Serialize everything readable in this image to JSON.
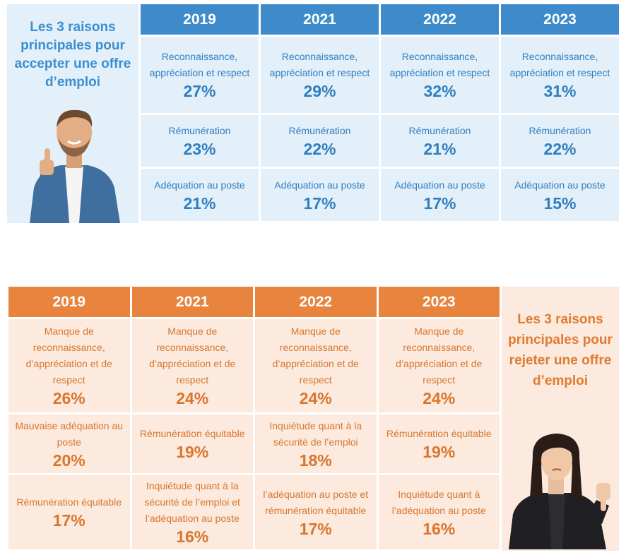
{
  "accept": {
    "title": "Les 3 raisons principales pour accepter une offre d’emploi",
    "years": [
      {
        "year": "2019",
        "items": [
          {
            "label": "Reconnaissance, appréciation et respect",
            "value": "27%"
          },
          {
            "label": "Rémunération",
            "value": "23%"
          },
          {
            "label": "Adéquation au poste",
            "value": "21%"
          }
        ]
      },
      {
        "year": "2021",
        "items": [
          {
            "label": "Reconnaissance, appréciation et respect",
            "value": "29%"
          },
          {
            "label": "Rémunération",
            "value": "22%"
          },
          {
            "label": "Adéquation au poste",
            "value": "17%"
          }
        ]
      },
      {
        "year": "2022",
        "items": [
          {
            "label": "Reconnaissance, appréciation et respect",
            "value": "32%"
          },
          {
            "label": "Rémunération",
            "value": "21%"
          },
          {
            "label": "Adéquation au poste",
            "value": "17%"
          }
        ]
      },
      {
        "year": "2023",
        "items": [
          {
            "label": "Reconnaissance, appréciation et respect",
            "value": "31%"
          },
          {
            "label": "Rémunération",
            "value": "22%"
          },
          {
            "label": "Adéquation au poste",
            "value": "15%"
          }
        ]
      }
    ]
  },
  "reject": {
    "title": "Les 3 raisons principales pour rejeter une offre d’emploi",
    "years": [
      {
        "year": "2019",
        "items": [
          {
            "label": "Manque de reconnaissance, d’appréciation et de respect",
            "value": "26%"
          },
          {
            "label": "Mauvaise adéquation au poste",
            "value": "20%"
          },
          {
            "label": "Rémunération équitable",
            "value": "17%"
          }
        ]
      },
      {
        "year": "2021",
        "items": [
          {
            "label": "Manque de reconnaissance, d’appréciation et de respect",
            "value": "24%"
          },
          {
            "label": "Rémunération équitable",
            "value": "19%"
          },
          {
            "label": "Inquiétude quant à la sécurité de l’emploi et l’adéquation au poste",
            "value": "16%"
          }
        ]
      },
      {
        "year": "2022",
        "items": [
          {
            "label": "Manque de reconnaissance, d’appréciation et de respect",
            "value": "24%"
          },
          {
            "label": "Inquiétude quant à la sécurité de l’emploi",
            "value": "18%"
          },
          {
            "label": "l’adéquation au poste et rémunération équitable",
            "value": "17%"
          }
        ]
      },
      {
        "year": "2023",
        "items": [
          {
            "label": "Manque de reconnaissance, d’appréciation et de respect",
            "value": "24%"
          },
          {
            "label": "Rémunération équitable",
            "value": "19%"
          },
          {
            "label": "Inquiétude quant à l’adéquation au poste",
            "value": "16%"
          }
        ]
      }
    ]
  },
  "colors": {
    "blue_header": "#3d8bcb",
    "blue_text": "#2f7fc0",
    "blue_cell": "#e3eff9",
    "orange_header": "#e8843e",
    "orange_text": "#d9762e",
    "orange_cell": "#fbeadd"
  },
  "icons": {
    "accept_person": "man-thumbs-up-icon",
    "reject_person": "woman-thumbs-down-icon"
  }
}
